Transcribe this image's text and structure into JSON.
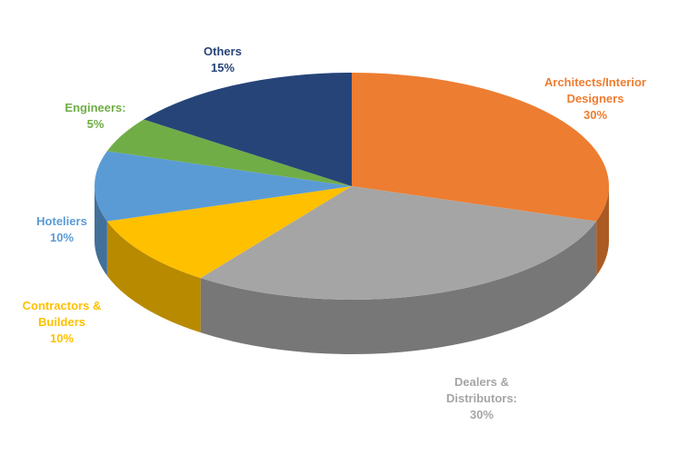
{
  "chart_data": {
    "type": "pie",
    "categories": [
      "Architects/Interior Designers",
      "Dealers & Distributors:",
      "Contractors & Builders",
      "Hoteliers",
      "Engineers:",
      "Others"
    ],
    "values": [
      30,
      30,
      10,
      10,
      5,
      15
    ],
    "value_labels": [
      "30%",
      "30%",
      "10%",
      "10%",
      "5%",
      "15%"
    ],
    "colors": [
      "#ed7d31",
      "#a5a5a5",
      "#ffc000",
      "#5b9bd5",
      "#70ad47",
      "#264478"
    ]
  }
}
